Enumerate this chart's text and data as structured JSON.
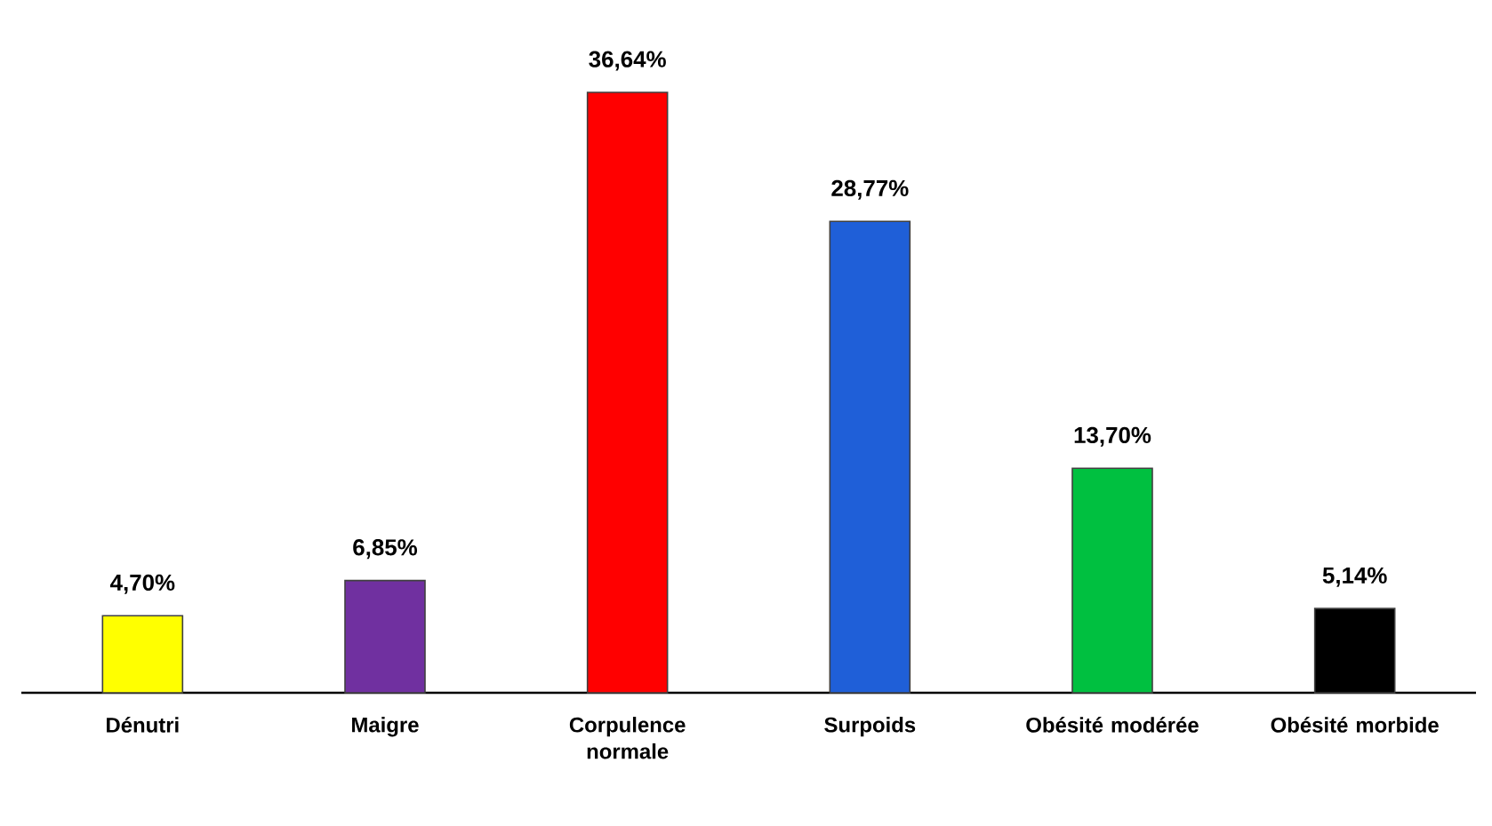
{
  "chart_data": {
    "type": "bar",
    "categories": [
      "Dénutri",
      "Maigre",
      "Corpulence normale",
      "Surpoids",
      "Obésité modérée",
      "Obésité morbide"
    ],
    "values": [
      4.7,
      6.85,
      36.64,
      28.77,
      13.7,
      5.14
    ],
    "colors": [
      "#ffff00",
      "#7030a0",
      "#ff0000",
      "#1f5fd8",
      "#00c040",
      "#000000"
    ],
    "value_labels": [
      "4,70%",
      "6,85%",
      "36,64%",
      "28,77%",
      "13,70%",
      "5,14%"
    ]
  }
}
